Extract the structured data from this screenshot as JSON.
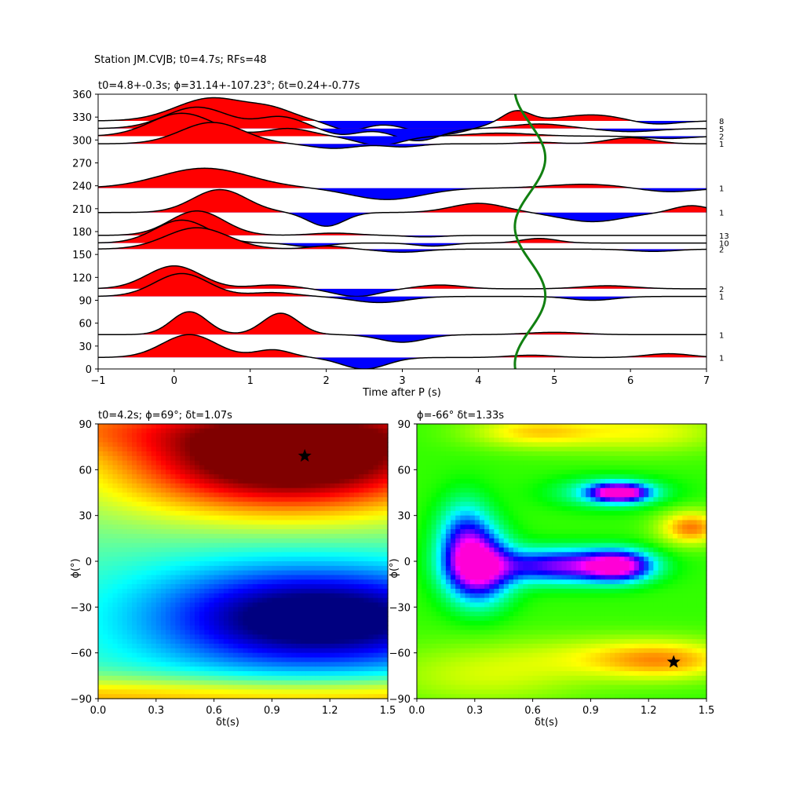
{
  "figure_title": "Station JM.CVJB; t0=4.7s; RFs=48",
  "chart_data": [
    {
      "type": "line",
      "title": "t0=4.8+-0.3s; ϕ=31.14+-107.23°; δt=0.24+-0.77s",
      "xlabel": "Time after P (s)",
      "ylabel": "",
      "xlim": [
        -1,
        7
      ],
      "ylim": [
        0,
        360
      ],
      "xticks": [
        "−1",
        "0",
        "1",
        "2",
        "3",
        "4",
        "5",
        "6",
        "7"
      ],
      "yticks": [
        "0",
        "30",
        "60",
        "90",
        "120",
        "150",
        "180",
        "210",
        "240",
        "270",
        "300",
        "330",
        "360"
      ],
      "fill_colors": {
        "positive": "#ff0000",
        "negative": "#0000ff"
      },
      "series": [
        {
          "baseline": 325,
          "count": "8",
          "pulses": [
            [
              0.5,
              0.8,
              30
            ],
            [
              1.3,
              0.5,
              12
            ],
            [
              2.3,
              0.4,
              -12
            ],
            [
              3.5,
              0.7,
              -18
            ],
            [
              4.5,
              0.3,
              14
            ],
            [
              5.5,
              0.7,
              8
            ],
            [
              6.3,
              0.5,
              -5
            ]
          ]
        },
        {
          "baseline": 315,
          "count": "5",
          "pulses": [
            [
              0.3,
              0.7,
              28
            ],
            [
              1.4,
              0.5,
              15
            ],
            [
              2.2,
              0.4,
              -8
            ],
            [
              3.2,
              0.5,
              -16
            ],
            [
              4.8,
              0.6,
              6
            ],
            [
              6.0,
              0.6,
              -4
            ]
          ]
        },
        {
          "baseline": 305,
          "count": "2",
          "pulses": [
            [
              0.1,
              0.7,
              30
            ],
            [
              1.5,
              0.5,
              10
            ],
            [
              2.7,
              0.5,
              -12
            ],
            [
              4.3,
              0.7,
              4
            ],
            [
              6.5,
              0.5,
              -3
            ]
          ]
        },
        {
          "baseline": 295,
          "count": "1",
          "pulses": [
            [
              0.5,
              0.7,
              28
            ],
            [
              2.1,
              0.5,
              -6
            ],
            [
              3.0,
              0.4,
              -4
            ],
            [
              4.8,
              0.4,
              2
            ],
            [
              6.0,
              0.5,
              8
            ]
          ]
        },
        {
          "baseline": 237,
          "count": "1",
          "pulses": [
            [
              0.4,
              1.0,
              26
            ],
            [
              2.8,
              0.8,
              -15
            ],
            [
              5.4,
              0.8,
              5
            ],
            [
              6.5,
              0.6,
              -5
            ]
          ]
        },
        {
          "baseline": 205,
          "count": "1",
          "pulses": [
            [
              0.6,
              0.6,
              30
            ],
            [
              2.0,
              0.4,
              -18
            ],
            [
              4.0,
              0.6,
              12
            ],
            [
              5.5,
              0.7,
              -12
            ],
            [
              6.8,
              0.4,
              9
            ]
          ]
        },
        {
          "baseline": 175,
          "count": "13",
          "pulses": [
            [
              0.3,
              0.6,
              32
            ],
            [
              2.1,
              0.5,
              3
            ],
            [
              3.3,
              0.4,
              -2
            ]
          ]
        },
        {
          "baseline": 165,
          "count": "10",
          "pulses": [
            [
              0.1,
              0.6,
              30
            ],
            [
              1.8,
              0.4,
              -5
            ],
            [
              3.4,
              0.4,
              -4
            ],
            [
              4.8,
              0.4,
              6
            ]
          ]
        },
        {
          "baseline": 157,
          "count": "2",
          "pulses": [
            [
              0.3,
              0.7,
              28
            ],
            [
              2.0,
              0.4,
              4
            ],
            [
              3.0,
              0.5,
              -4
            ],
            [
              6.3,
              0.5,
              -3
            ]
          ]
        },
        {
          "baseline": 105,
          "count": "2",
          "pulses": [
            [
              0.0,
              0.6,
              30
            ],
            [
              1.3,
              0.5,
              5
            ],
            [
              2.4,
              0.5,
              -10
            ],
            [
              3.5,
              0.5,
              5
            ],
            [
              5.7,
              0.6,
              4
            ]
          ]
        },
        {
          "baseline": 95,
          "count": "1",
          "pulses": [
            [
              0.1,
              0.6,
              30
            ],
            [
              1.3,
              0.5,
              5
            ],
            [
              2.7,
              0.6,
              -8
            ],
            [
              5.5,
              0.5,
              -5
            ]
          ]
        },
        {
          "baseline": 45,
          "count": "1",
          "pulses": [
            [
              0.2,
              0.4,
              30
            ],
            [
              1.4,
              0.4,
              28
            ],
            [
              3.0,
              0.5,
              -10
            ],
            [
              5.0,
              0.6,
              3
            ]
          ]
        },
        {
          "baseline": 15,
          "count": "1",
          "pulses": [
            [
              0.2,
              0.6,
              30
            ],
            [
              1.3,
              0.4,
              10
            ],
            [
              2.5,
              0.5,
              -15
            ],
            [
              4.7,
              0.5,
              3
            ],
            [
              6.5,
              0.5,
              5
            ]
          ]
        }
      ],
      "t0_curve": {
        "color": "#118011",
        "t0": 4.7
      }
    },
    {
      "type": "heatmap",
      "title": "t0=4.2s; ϕ=69°; δt=1.07s",
      "xlabel": "δt(s)",
      "ylabel": "ϕ(°)",
      "xlim": [
        0,
        1.5
      ],
      "ylim": [
        -90,
        90
      ],
      "xticks": [
        "0.0",
        "0.3",
        "0.6",
        "0.9",
        "1.2",
        "1.5"
      ],
      "yticks": [
        "−90",
        "−60",
        "−30",
        "0",
        "30",
        "60",
        "90"
      ],
      "colormap": "jet",
      "best": {
        "dt": 1.07,
        "phi": 69
      }
    },
    {
      "type": "heatmap",
      "title": "ϕ=-66° δt=1.33s",
      "xlabel": "δt(s)",
      "ylabel": "ϕ(°)",
      "xlim": [
        0,
        1.5
      ],
      "ylim": [
        -90,
        90
      ],
      "xticks": [
        "0.0",
        "0.3",
        "0.6",
        "0.9",
        "1.2",
        "1.5"
      ],
      "yticks": [
        "−90",
        "−60",
        "−30",
        "0",
        "30",
        "60",
        "90"
      ],
      "colormap": "hsv",
      "best": {
        "dt": 1.33,
        "phi": -66
      }
    }
  ]
}
